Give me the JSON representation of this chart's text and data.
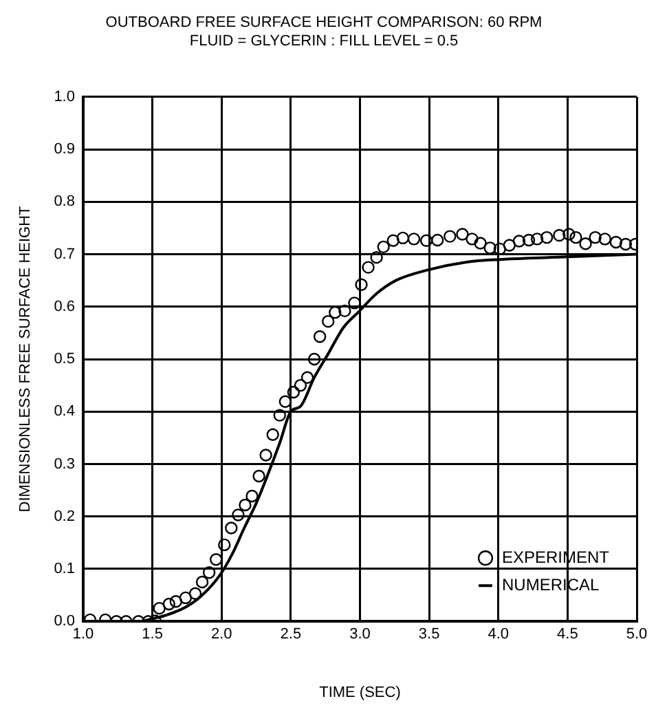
{
  "chart_data": {
    "type": "scatter",
    "title": "OUTBOARD FREE SURFACE HEIGHT COMPARISON: 60 RPM",
    "subtitle": "FLUID = GLYCERIN : FILL LEVEL = 0.5",
    "xlabel": "TIME (SEC)",
    "ylabel": "DIMENSIONLESS FREE SURFACE HEIGHT",
    "xlim": [
      1.0,
      5.0
    ],
    "ylim": [
      0.0,
      1.0
    ],
    "xticks": [
      {
        "value": 1,
        "label": "1.0"
      },
      {
        "value": 1.5,
        "label": "1.5"
      },
      {
        "value": 2,
        "label": "2.0"
      },
      {
        "value": 2.5,
        "label": "2.5"
      },
      {
        "value": 3,
        "label": "3.0"
      },
      {
        "value": 3.5,
        "label": "3.5"
      },
      {
        "value": 4,
        "label": "4.0"
      },
      {
        "value": 4.5,
        "label": "4.5"
      },
      {
        "value": 5,
        "label": "5.0"
      }
    ],
    "yticks": [
      {
        "value": 0,
        "label": "0.0"
      },
      {
        "value": 0.1,
        "label": "0.1"
      },
      {
        "value": 0.2,
        "label": "0.2"
      },
      {
        "value": 0.3,
        "label": "0.3"
      },
      {
        "value": 0.4,
        "label": "0.4"
      },
      {
        "value": 0.5,
        "label": "0.5"
      },
      {
        "value": 0.6,
        "label": "0.6"
      },
      {
        "value": 0.7,
        "label": "0.7"
      },
      {
        "value": 0.8,
        "label": "0.8"
      },
      {
        "value": 0.9,
        "label": "0.9"
      },
      {
        "value": 1,
        "label": "1.0"
      }
    ],
    "grid": true,
    "legend": "bottom right",
    "marker": "circle",
    "series": [
      {
        "name": "EXPERIMENT",
        "color": "#000000",
        "x": [
          1.05,
          1.16,
          1.24,
          1.31,
          1.4,
          1.47,
          1.52,
          1.55,
          1.62,
          1.67,
          1.74,
          1.81,
          1.86,
          1.91,
          1.96,
          2.02,
          2.07,
          2.12,
          2.17,
          2.22,
          2.27,
          2.32,
          2.37,
          2.42,
          2.46,
          2.52,
          2.57,
          2.62,
          2.67,
          2.71,
          2.77,
          2.82,
          2.89,
          2.96,
          3.01,
          3.06,
          3.12,
          3.17,
          3.24,
          3.31,
          3.39,
          3.48,
          3.56,
          3.65,
          3.74,
          3.81,
          3.87,
          3.94,
          4.01,
          4.08,
          4.15,
          4.22,
          4.28,
          4.35,
          4.44,
          4.51,
          4.56,
          4.63,
          4.7,
          4.77,
          4.85,
          4.92,
          4.99
        ],
        "values": [
          0.003,
          0.003,
          0,
          0,
          0,
          0,
          0.001,
          0.025,
          0.033,
          0.038,
          0.045,
          0.053,
          0.075,
          0.093,
          0.118,
          0.146,
          0.178,
          0.203,
          0.222,
          0.239,
          0.277,
          0.317,
          0.356,
          0.393,
          0.419,
          0.437,
          0.45,
          0.465,
          0.5,
          0.543,
          0.572,
          0.589,
          0.592,
          0.607,
          0.642,
          0.675,
          0.694,
          0.714,
          0.726,
          0.731,
          0.729,
          0.726,
          0.727,
          0.734,
          0.738,
          0.729,
          0.721,
          0.712,
          0.71,
          0.717,
          0.725,
          0.727,
          0.729,
          0.732,
          0.736,
          0.738,
          0.732,
          0.72,
          0.732,
          0.729,
          0.723,
          0.719,
          0.719
        ]
      },
      {
        "name": "NUMERICAL",
        "type": "line",
        "color": "#000000",
        "marker": "none",
        "line_style": "solid",
        "x": [
          1.42,
          1.6,
          1.74,
          1.86,
          1.99,
          2.08,
          2.16,
          2.25,
          2.33,
          2.42,
          2.5,
          2.57,
          2.67,
          2.77,
          2.88,
          2.99,
          3.12,
          3.26,
          3.49,
          3.77,
          4.01,
          4.5,
          5.0
        ],
        "values": [
          0,
          0.012,
          0.027,
          0.05,
          0.089,
          0.13,
          0.176,
          0.225,
          0.277,
          0.34,
          0.4,
          0.41,
          0.465,
          0.51,
          0.56,
          0.59,
          0.625,
          0.65,
          0.67,
          0.685,
          0.69,
          0.695,
          0.7
        ]
      }
    ]
  }
}
